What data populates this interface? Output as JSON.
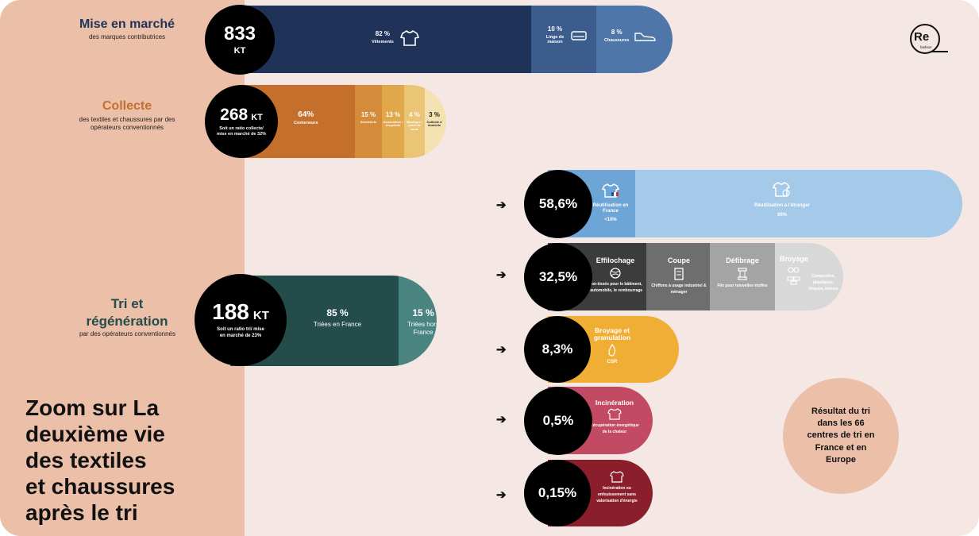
{
  "logo": {
    "text": "Re",
    "tag": "fashion"
  },
  "zoom_title": [
    "Zoom sur La",
    "deuxième vie",
    "des textiles",
    "et chaussures",
    "après le tri"
  ],
  "result_box": "Résultat du tri dans les 66 centres de tri en France et en Europe",
  "colors": {
    "left_panel": "#ebbfa8",
    "background": "#f5e7e3",
    "circle": "#000000"
  },
  "sections": {
    "mise": {
      "title": "Mise en marché",
      "subtitle": "des marques contributrices",
      "value": "833",
      "unit": "KT",
      "segments": [
        {
          "pct": "82 %",
          "label": "Vêtements",
          "icon": "tshirt-icon",
          "color": "#1f3358"
        },
        {
          "pct": "10 %",
          "label": "Linge de maison",
          "icon": "bed-icon",
          "color": "#3b5c8c"
        },
        {
          "pct": "8 %",
          "label": "Chaussures",
          "icon": "shoe-icon",
          "color": "#4f76a8"
        }
      ]
    },
    "collecte": {
      "title": "Collecte",
      "subtitle": "des textiles et chaussures par des opérateurs conventionnés",
      "value": "268",
      "unit": "KT",
      "note": "Soit un ratio collecte/ mise en marché de 32%",
      "segments": [
        {
          "pct": "64%",
          "label": "Conteneurs",
          "color": "#c56f2c"
        },
        {
          "pct": "15 %",
          "label": "Déchèterie",
          "color": "#d58c3a"
        },
        {
          "pct": "13 %",
          "label": "Association / recyclerie",
          "color": "#e0a84a"
        },
        {
          "pct": "4 %",
          "label": "Boutique / point de vente",
          "color": "#eac576"
        },
        {
          "pct": "3 %",
          "label": "Collecte à domicile",
          "color": "#f5e2b3"
        }
      ]
    },
    "tri": {
      "title": "Tri et régénération",
      "subtitle": "par des opérateurs conventionnés",
      "value": "188",
      "unit": "KT",
      "note": "Soit un ratio tri/ mise en marché de 23%",
      "segments": [
        {
          "pct": "85 %",
          "label": "Triées en France",
          "color": "#234c4b"
        },
        {
          "pct": "15 %",
          "label": "Triées hors France",
          "color": "#4a8480"
        }
      ]
    }
  },
  "outcomes": [
    {
      "value": "58,6%",
      "segments": [
        {
          "title": "",
          "text": "Réutilisation en France",
          "extra": "<10%",
          "icon": "tshirt-flag-icon",
          "color": "#6ea5d7"
        },
        {
          "title": "",
          "text": "Réutilisation à l'étranger",
          "extra": "90%",
          "icon": "tshirt-globe-icon",
          "color": "#a5cae9"
        }
      ]
    },
    {
      "value": "32,5%",
      "segments": [
        {
          "title": "Effilochage",
          "text": "Non-tissés pour le bâtiment, l'automobile, le rembourrage",
          "icon": "yarn-icon",
          "color": "#3c3c3c"
        },
        {
          "title": "Coupe",
          "text": "Chiffons à usage industriel & ménager",
          "icon": "cloth-icon",
          "color": "#6e6e6e"
        },
        {
          "title": "Défibrage",
          "text": "Fils pour nouvelles étoffes",
          "icon": "spool-icon",
          "color": "#a4a4a4"
        },
        {
          "title": "Broyage",
          "text": "Composites, plastiques, briques, bétons",
          "icon": "bricks-icon",
          "color": "#d8d8d8"
        }
      ]
    },
    {
      "value": "8,3%",
      "segments": [
        {
          "title": "Broyage et granulation",
          "text": "CSR",
          "icon": "fire-icon",
          "color": "#f0ae35"
        }
      ]
    },
    {
      "value": "0,5%",
      "segments": [
        {
          "title": "Incinération",
          "text": "Récupération énergétique de la chaleur",
          "icon": "tshirt-fire-icon",
          "color": "#c24a62"
        }
      ]
    },
    {
      "value": "0,15%",
      "segments": [
        {
          "title": "",
          "text": "Incinération ou enfouissement sans valorisation d'énergie",
          "icon": "tshirt-icon",
          "color": "#8a1e2a"
        }
      ]
    }
  ],
  "chart_data": {
    "type": "bar",
    "title": "",
    "stages": [
      {
        "name": "Mise en marché",
        "total_kt": 833,
        "breakdown": {
          "Vêtements": 82,
          "Linge de maison": 10,
          "Chaussures": 8
        }
      },
      {
        "name": "Collecte",
        "total_kt": 268,
        "ratio_pct": 32,
        "breakdown": {
          "Conteneurs": 64,
          "Déchèterie": 15,
          "Association / recyclerie": 13,
          "Boutique / point de vente": 4,
          "Collecte à domicile": 3
        }
      },
      {
        "name": "Tri et régénération",
        "total_kt": 188,
        "ratio_pct": 23,
        "breakdown": {
          "Triées en France": 85,
          "Triées hors France": 15
        }
      }
    ],
    "outcomes_pct": {
      "Réutilisation": 58.6,
      "Recyclage (effilochage, coupe, défibrage, broyage)": 32.5,
      "Broyage et granulation (CSR)": 8.3,
      "Incinération avec récupération": 0.5,
      "Incinération ou enfouissement sans valorisation": 0.15
    },
    "reuse_split": {
      "Réutilisation en France": "<10%",
      "Réutilisation à l'étranger": "90%"
    }
  }
}
